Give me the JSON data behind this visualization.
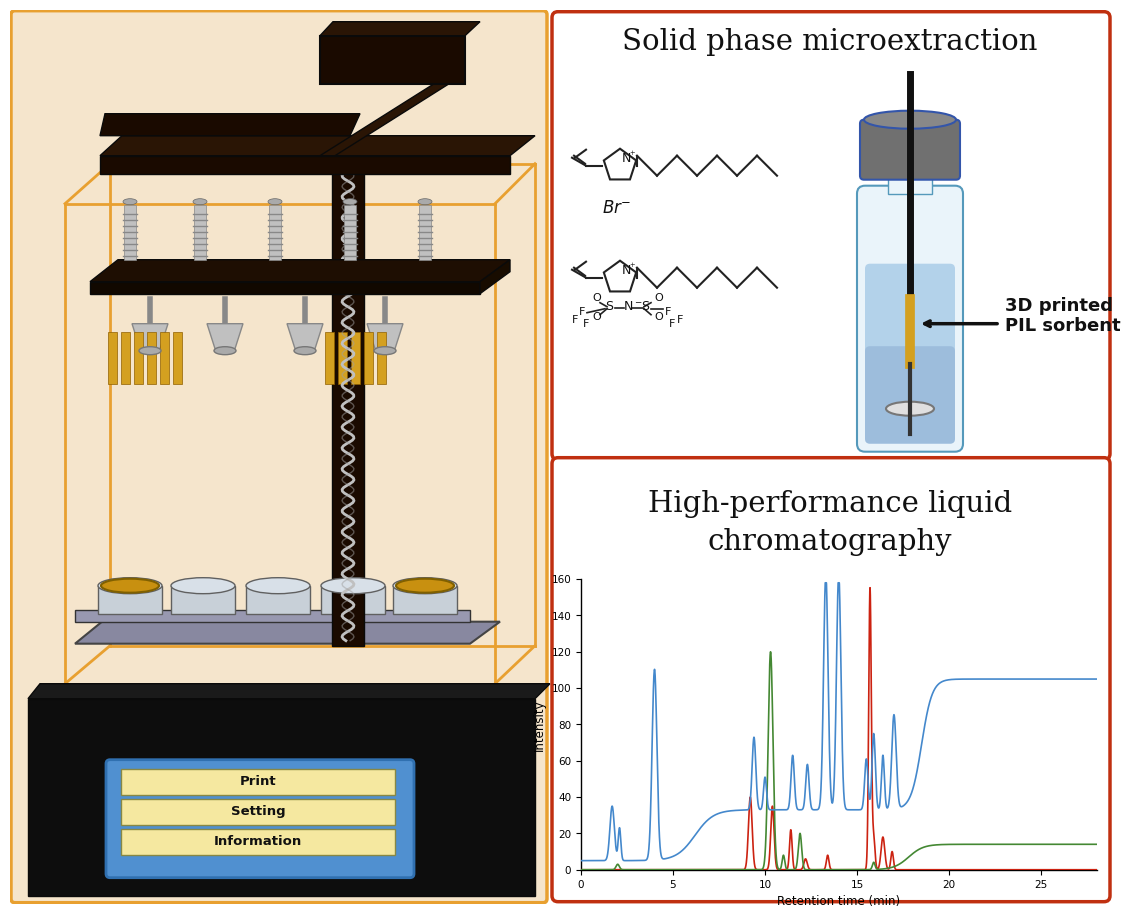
{
  "fig_bg": "#ffffff",
  "printer_bg": "#f5e5cc",
  "outer_border_color": "#e8a030",
  "panel_border_color": "#c03010",
  "spme_title": "Solid phase microextraction",
  "hplc_title_line1": "High-performance liquid",
  "hplc_title_line2": "chromatography",
  "hplc_xlabel": "Retention time (min)",
  "hplc_ylabel": "Intensity",
  "hplc_ylim": [
    0,
    160
  ],
  "hplc_xlim": [
    0,
    28
  ],
  "hplc_yticks": [
    0,
    20,
    40,
    60,
    80,
    100,
    120,
    140,
    160
  ],
  "hplc_xticks": [
    0,
    5,
    10,
    15,
    20,
    25
  ],
  "printer_base_color": "#111111",
  "screen_bg": "#5090d0",
  "screen_border": "#3070b0",
  "button_fill": "#f5e8a0",
  "button_labels": [
    "Print",
    "Setting",
    "Information"
  ],
  "screw_color": "#b8b8b8",
  "yellow_bar_color": "#d4a020",
  "vial_cap_color": "#707070",
  "sorbent_color": "#d4a020",
  "label_3d_text": "3D printed\nPIL sorbent",
  "dark_brown": "#1a0a00",
  "med_brown": "#2a1505",
  "platform_color": "#1e0e02"
}
